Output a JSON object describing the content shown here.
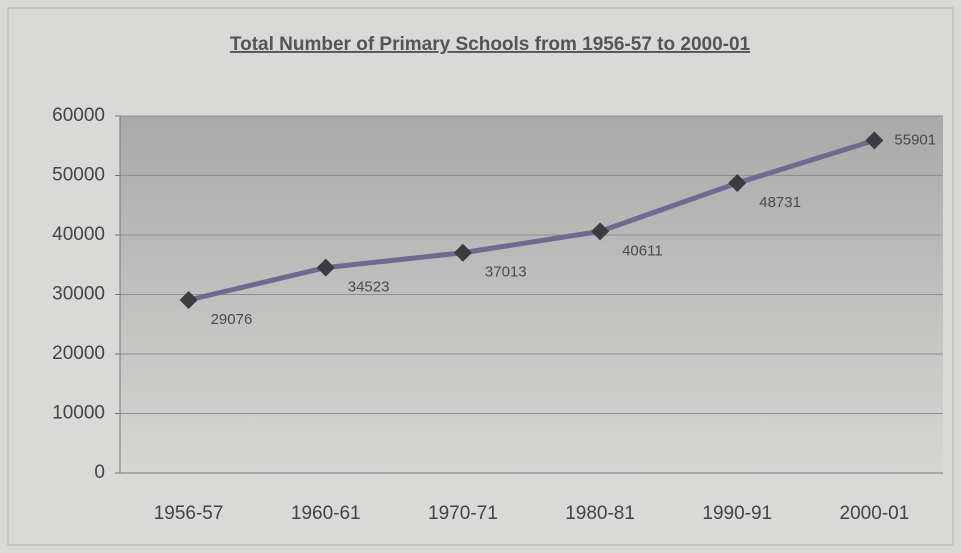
{
  "chart_data": {
    "type": "line",
    "title": "Total Number of Primary Schools from 1956-57 to 2000-01",
    "categories": [
      "1956-57",
      "1960-61",
      "1970-71",
      "1980-81",
      "1990-91",
      "2000-01"
    ],
    "values": [
      29076,
      34523,
      37013,
      40611,
      48731,
      55901
    ],
    "color": "#6f6a92",
    "marker_color": "#3b3b40",
    "ylim": [
      0,
      60000
    ],
    "yticks": [
      0,
      10000,
      20000,
      30000,
      40000,
      50000,
      60000
    ],
    "grid": true
  }
}
